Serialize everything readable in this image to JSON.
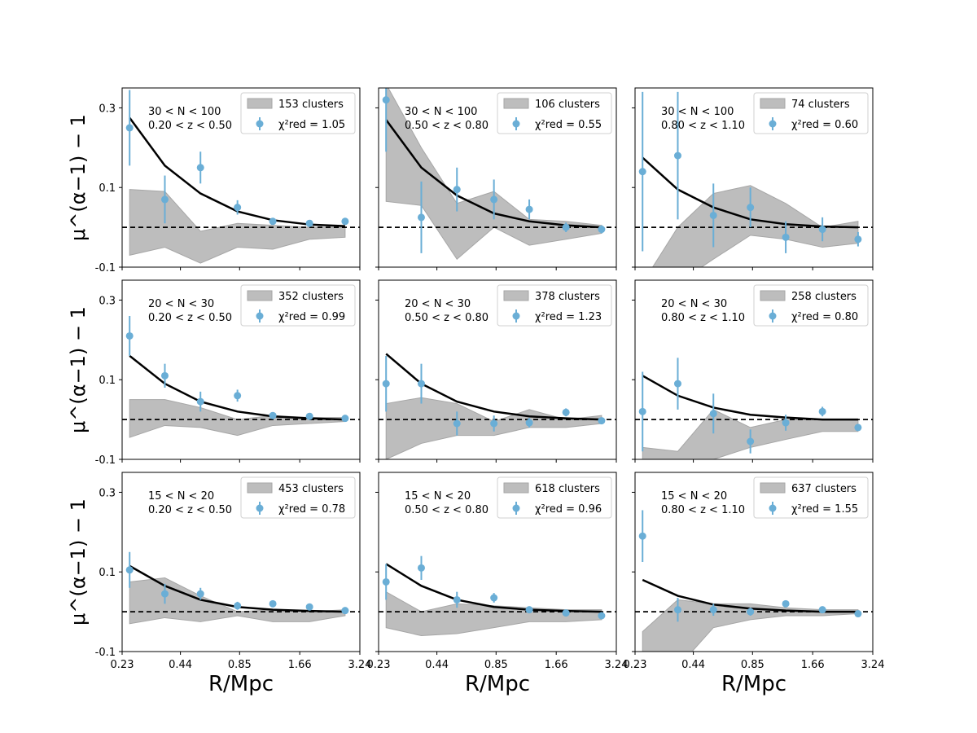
{
  "figure": {
    "ylabel": "μ^(α−1) − 1",
    "xlabel": "R/Mpc",
    "x_tick_labels": [
      "0.23",
      "0.44",
      "0.85",
      "1.66",
      "3.24"
    ],
    "y_tick_labels": [
      "-0.1",
      "0.1",
      "0.3"
    ]
  },
  "colors": {
    "points": "#6aaed6",
    "band": "#bdbdbd",
    "model": "#000000",
    "reference": "#000000"
  },
  "chart_data": [
    {
      "type": "scatter",
      "title": "30 < N < 100, 0.20 < z < 0.50",
      "richness": "30 < N < 100",
      "redshift": "0.20 < z < 0.50",
      "legend": {
        "band": "153 clusters",
        "points": "χ²red = 1.05"
      },
      "xlabel": "",
      "ylabel": "μ^(α−1) − 1",
      "xscale": "log",
      "ylim": [
        -0.1,
        0.35
      ],
      "x": [
        0.25,
        0.37,
        0.55,
        0.83,
        1.23,
        1.85,
        2.75
      ],
      "y": [
        0.25,
        0.07,
        0.15,
        0.05,
        0.015,
        0.01,
        0.015
      ],
      "yerr": [
        0.095,
        0.06,
        0.04,
        0.018,
        0.008,
        0.006,
        0.004
      ],
      "model": [
        0.275,
        0.155,
        0.085,
        0.04,
        0.018,
        0.007,
        0.003
      ],
      "band_upper": [
        0.095,
        0.09,
        -0.01,
        0.01,
        0.005,
        0.0,
        0.0
      ],
      "band_lower": [
        -0.07,
        -0.05,
        -0.09,
        -0.05,
        -0.055,
        -0.03,
        -0.025
      ]
    },
    {
      "type": "scatter",
      "title": "30 < N < 100, 0.50 < z < 0.80",
      "richness": "30 < N < 100",
      "redshift": "0.50 < z < 0.80",
      "legend": {
        "band": "106 clusters",
        "points": "χ²red = 0.55"
      },
      "xlabel": "",
      "ylabel": "",
      "xscale": "log",
      "ylim": [
        -0.1,
        0.35
      ],
      "x": [
        0.25,
        0.37,
        0.55,
        0.83,
        1.23,
        1.85,
        2.75
      ],
      "y": [
        0.32,
        0.025,
        0.095,
        0.07,
        0.045,
        0.0,
        -0.005
      ],
      "yerr": [
        0.13,
        0.09,
        0.055,
        0.05,
        0.025,
        0.012,
        0.01
      ],
      "model": [
        0.27,
        0.15,
        0.08,
        0.035,
        0.015,
        0.005,
        0.0
      ],
      "band_upper": [
        0.36,
        0.2,
        0.06,
        0.09,
        0.02,
        0.015,
        0.005
      ],
      "band_lower": [
        0.065,
        0.055,
        -0.08,
        0.0,
        -0.045,
        -0.03,
        -0.015
      ]
    },
    {
      "type": "scatter",
      "title": "30 < N < 100, 0.80 < z < 1.10",
      "richness": "30 < N < 100",
      "redshift": "0.80 < z < 1.10",
      "legend": {
        "band": "74 clusters",
        "points": "χ²red = 0.60"
      },
      "xlabel": "",
      "ylabel": "",
      "xscale": "log",
      "ylim": [
        -0.1,
        0.35
      ],
      "x": [
        0.25,
        0.37,
        0.55,
        0.83,
        1.23,
        1.85,
        2.75
      ],
      "y": [
        0.14,
        0.18,
        0.03,
        0.05,
        -0.025,
        -0.005,
        -0.03
      ],
      "yerr": [
        0.2,
        0.16,
        0.08,
        0.05,
        0.04,
        0.03,
        0.018
      ],
      "model": [
        0.175,
        0.095,
        0.05,
        0.02,
        0.008,
        0.002,
        0.0
      ],
      "band_upper": [
        -0.14,
        0.0,
        0.085,
        0.105,
        0.06,
        0.0,
        0.015
      ],
      "band_lower": [
        -0.14,
        -0.14,
        -0.08,
        -0.02,
        -0.03,
        -0.05,
        -0.04
      ]
    },
    {
      "type": "scatter",
      "title": "20 < N < 30, 0.20 < z < 0.50",
      "richness": "20 < N < 30",
      "redshift": "0.20 < z < 0.50",
      "legend": {
        "band": "352 clusters",
        "points": "χ²red = 0.99"
      },
      "xlabel": "",
      "ylabel": "μ^(α−1) − 1",
      "xscale": "log",
      "ylim": [
        -0.1,
        0.35
      ],
      "x": [
        0.25,
        0.37,
        0.55,
        0.83,
        1.23,
        1.85,
        2.75
      ],
      "y": [
        0.21,
        0.11,
        0.045,
        0.06,
        0.01,
        0.008,
        0.003
      ],
      "yerr": [
        0.05,
        0.03,
        0.025,
        0.015,
        0.007,
        0.005,
        0.004
      ],
      "model": [
        0.16,
        0.09,
        0.045,
        0.02,
        0.008,
        0.003,
        0.0
      ],
      "band_upper": [
        0.05,
        0.05,
        0.03,
        0.0,
        0.01,
        0.005,
        0.005
      ],
      "band_lower": [
        -0.045,
        -0.015,
        -0.02,
        -0.04,
        -0.015,
        -0.01,
        -0.005
      ]
    },
    {
      "type": "scatter",
      "title": "20 < N < 30, 0.50 < z < 0.80",
      "richness": "20 < N < 30",
      "redshift": "0.50 < z < 0.80",
      "legend": {
        "band": "378 clusters",
        "points": "χ²red = 1.23"
      },
      "xlabel": "",
      "ylabel": "",
      "xscale": "log",
      "ylim": [
        -0.1,
        0.35
      ],
      "x": [
        0.25,
        0.37,
        0.55,
        0.83,
        1.23,
        1.85,
        2.75
      ],
      "y": [
        0.09,
        0.09,
        -0.01,
        -0.01,
        -0.008,
        0.018,
        -0.003
      ],
      "yerr": [
        0.07,
        0.05,
        0.03,
        0.02,
        0.012,
        0.01,
        0.006
      ],
      "model": [
        0.165,
        0.09,
        0.045,
        0.02,
        0.008,
        0.003,
        0.0
      ],
      "band_upper": [
        0.04,
        0.055,
        0.04,
        -0.005,
        0.025,
        0.0,
        0.01
      ],
      "band_lower": [
        -0.1,
        -0.06,
        -0.04,
        -0.04,
        -0.02,
        -0.02,
        -0.01
      ]
    },
    {
      "type": "scatter",
      "title": "20 < N < 30, 0.80 < z < 1.10",
      "richness": "20 < N < 30",
      "redshift": "0.80 < z < 1.10",
      "legend": {
        "band": "258 clusters",
        "points": "χ²red = 0.80"
      },
      "xlabel": "",
      "ylabel": "",
      "xscale": "log",
      "ylim": [
        -0.1,
        0.35
      ],
      "x": [
        0.25,
        0.37,
        0.55,
        0.83,
        1.23,
        1.85,
        2.75
      ],
      "y": [
        0.02,
        0.09,
        0.015,
        -0.055,
        -0.008,
        0.02,
        -0.02
      ],
      "yerr": [
        0.1,
        0.065,
        0.05,
        0.03,
        0.02,
        0.012,
        0.008
      ],
      "model": [
        0.11,
        0.06,
        0.03,
        0.012,
        0.005,
        0.0,
        0.0
      ],
      "band_upper": [
        -0.07,
        -0.08,
        0.025,
        -0.02,
        0.0,
        0.0,
        0.0
      ],
      "band_lower": [
        -0.14,
        -0.14,
        -0.1,
        -0.07,
        -0.05,
        -0.03,
        -0.03
      ]
    },
    {
      "type": "scatter",
      "title": "15 < N < 20, 0.20 < z < 0.50",
      "richness": "15 < N < 20",
      "redshift": "0.20 < z < 0.50",
      "legend": {
        "band": "453 clusters",
        "points": "χ²red = 0.78"
      },
      "xlabel": "R/Mpc",
      "ylabel": "μ^(α−1) − 1",
      "xscale": "log",
      "ylim": [
        -0.1,
        0.35
      ],
      "x": [
        0.25,
        0.37,
        0.55,
        0.83,
        1.23,
        1.85,
        2.75
      ],
      "y": [
        0.105,
        0.045,
        0.045,
        0.015,
        0.02,
        0.012,
        0.003
      ],
      "yerr": [
        0.045,
        0.025,
        0.015,
        0.01,
        0.006,
        0.005,
        0.003
      ],
      "model": [
        0.115,
        0.065,
        0.03,
        0.012,
        0.005,
        0.002,
        0.0
      ],
      "band_upper": [
        0.075,
        0.085,
        0.04,
        0.0,
        0.005,
        0.0,
        0.005
      ],
      "band_lower": [
        -0.03,
        -0.015,
        -0.025,
        -0.01,
        -0.025,
        -0.025,
        -0.01
      ]
    },
    {
      "type": "scatter",
      "title": "15 < N < 20, 0.50 < z < 0.80",
      "richness": "15 < N < 20",
      "redshift": "0.50 < z < 0.80",
      "legend": {
        "band": "618 clusters",
        "points": "χ²red = 0.96"
      },
      "xlabel": "R/Mpc",
      "ylabel": "",
      "xscale": "log",
      "ylim": [
        -0.1,
        0.35
      ],
      "x": [
        0.25,
        0.37,
        0.55,
        0.83,
        1.23,
        1.85,
        2.75
      ],
      "y": [
        0.075,
        0.11,
        0.03,
        0.035,
        0.005,
        -0.003,
        -0.01
      ],
      "yerr": [
        0.045,
        0.03,
        0.02,
        0.012,
        0.008,
        0.004,
        0.004
      ],
      "model": [
        0.12,
        0.065,
        0.03,
        0.012,
        0.005,
        0.002,
        0.0
      ],
      "band_upper": [
        0.05,
        0.0,
        0.02,
        0.015,
        0.01,
        0.005,
        0.005
      ],
      "band_lower": [
        -0.04,
        -0.06,
        -0.055,
        -0.04,
        -0.025,
        -0.025,
        -0.02
      ]
    },
    {
      "type": "scatter",
      "title": "15 < N < 20, 0.80 < z < 1.10",
      "richness": "15 < N < 20",
      "redshift": "0.80 < z < 1.10",
      "legend": {
        "band": "637 clusters",
        "points": "χ²red = 1.55"
      },
      "xlabel": "R/Mpc",
      "ylabel": "",
      "xscale": "log",
      "ylim": [
        -0.1,
        0.35
      ],
      "x": [
        0.25,
        0.37,
        0.55,
        0.83,
        1.23,
        1.85,
        2.75
      ],
      "y": [
        0.19,
        0.005,
        0.005,
        0.0,
        0.02,
        0.005,
        -0.005
      ],
      "yerr": [
        0.065,
        0.03,
        0.015,
        0.01,
        0.008,
        0.004,
        0.004
      ],
      "model": [
        0.08,
        0.04,
        0.018,
        0.008,
        0.003,
        0.0,
        0.0
      ],
      "band_upper": [
        -0.05,
        0.03,
        0.02,
        0.02,
        0.01,
        0.005,
        0.005
      ],
      "band_lower": [
        -0.14,
        -0.14,
        -0.04,
        -0.02,
        -0.01,
        -0.01,
        -0.005
      ]
    }
  ]
}
